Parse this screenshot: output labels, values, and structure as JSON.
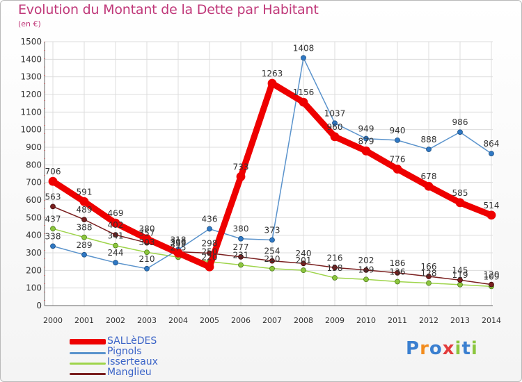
{
  "header": {
    "title": "Evolution du Montant de la Dette par Habitant",
    "unit": "(en €)"
  },
  "logo": {
    "text": "Proxiti",
    "colors": [
      "#3a7fd0",
      "#f28c1e",
      "#3a7fd0",
      "#e33b3b",
      "#8cc63e",
      "#3a7fd0",
      "#8cc63e"
    ]
  },
  "chart_data": {
    "type": "line",
    "x": [
      2000,
      2001,
      2002,
      2003,
      2004,
      2005,
      2006,
      2007,
      2008,
      2009,
      2010,
      2011,
      2012,
      2013,
      2014
    ],
    "ylim": [
      0,
      1500
    ],
    "yticks": [
      0,
      100,
      200,
      300,
      400,
      500,
      600,
      700,
      800,
      900,
      1000,
      1100,
      1200,
      1300,
      1400,
      1500
    ],
    "grid": true,
    "legend": "bottom-left",
    "series": [
      {
        "name": "SALLèDES",
        "color": "#ee0000",
        "values": [
          706,
          591,
          469,
          380,
          299,
          220,
          733,
          1263,
          1156,
          960,
          879,
          776,
          678,
          585,
          514
        ],
        "labels": [
          "706",
          "591",
          "469",
          "380",
          "299",
          "220",
          "733",
          "1263",
          "1156",
          "960",
          "879",
          "776",
          "678",
          "585",
          "514"
        ]
      },
      {
        "name": "Pignols",
        "color": "#5a93cc",
        "values": [
          338,
          289,
          244,
          210,
          318,
          436,
          380,
          373,
          1408,
          1037,
          949,
          940,
          888,
          986,
          864
        ],
        "labels": [
          "338",
          "289",
          "244",
          "210",
          "318",
          "436",
          "380",
          "373",
          "1408",
          "1037",
          "949",
          "940",
          "888",
          "986",
          "864"
        ]
      },
      {
        "name": "Isserteaux",
        "color": "#9ed44a",
        "values": [
          437,
          388,
          341,
          303,
          275,
          250,
          231,
          210,
          201,
          158,
          149,
          136,
          128,
          119,
          109
        ],
        "labels": [
          "437",
          "388",
          "341",
          "303",
          "275",
          "250",
          "231",
          "210",
          "201",
          "158",
          "149",
          "136",
          "128",
          "119",
          "109"
        ]
      },
      {
        "name": "Manglieu",
        "color": "#7a1f1f",
        "values": [
          563,
          489,
          402,
          357,
          306,
          298,
          277,
          254,
          240,
          216,
          202,
          186,
          166,
          145,
          120
        ],
        "labels": [
          "563",
          "489",
          "402",
          "357",
          "306",
          "298",
          "277",
          "254",
          "240",
          "216",
          "202",
          "186",
          "166",
          "145",
          "120"
        ]
      }
    ]
  }
}
